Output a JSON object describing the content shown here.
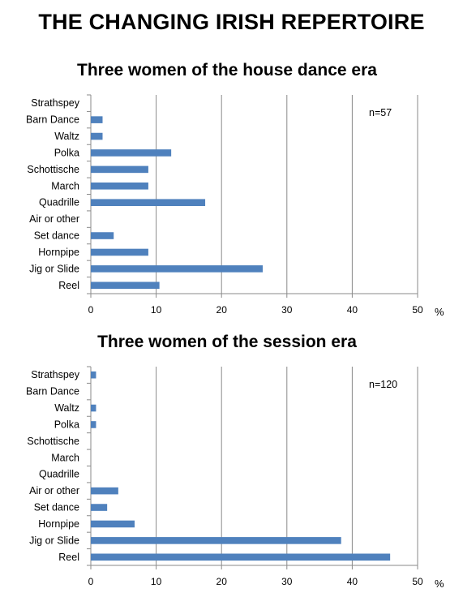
{
  "title": "THE CHANGING IRISH REPERTOIRE",
  "chart_data": [
    {
      "type": "bar",
      "orientation": "horizontal",
      "title": "Three women of the house dance era",
      "annotation": "n=57",
      "unit_label": "%",
      "xlim": [
        0,
        50
      ],
      "xticks": [
        "0",
        "10",
        "20",
        "30",
        "40",
        "50"
      ],
      "grid": "vertical",
      "bar_color": "#4f81bd",
      "categories": [
        "Strathspey",
        "Barn Dance",
        "Waltz",
        "Polka",
        "Schottische",
        "March",
        "Quadrille",
        "Air or other",
        "Set dance",
        "Hornpipe",
        "Jig or Slide",
        "Reel"
      ],
      "values": [
        0,
        1.8,
        1.8,
        12.3,
        8.8,
        8.8,
        17.5,
        0,
        3.5,
        8.8,
        26.3,
        10.5
      ]
    },
    {
      "type": "bar",
      "orientation": "horizontal",
      "title": "Three women of the session era",
      "annotation": "n=120",
      "unit_label": "%",
      "xlim": [
        0,
        50
      ],
      "xticks": [
        "0",
        "10",
        "20",
        "30",
        "40",
        "50"
      ],
      "grid": "vertical",
      "bar_color": "#4f81bd",
      "categories": [
        "Strathspey",
        "Barn Dance",
        "Waltz",
        "Polka",
        "Schottische",
        "March",
        "Quadrille",
        "Air or other",
        "Set dance",
        "Hornpipe",
        "Jig or Slide",
        "Reel"
      ],
      "values": [
        0.8,
        0,
        0.8,
        0.8,
        0,
        0,
        0,
        4.2,
        2.5,
        6.7,
        38.3,
        45.8
      ]
    }
  ]
}
